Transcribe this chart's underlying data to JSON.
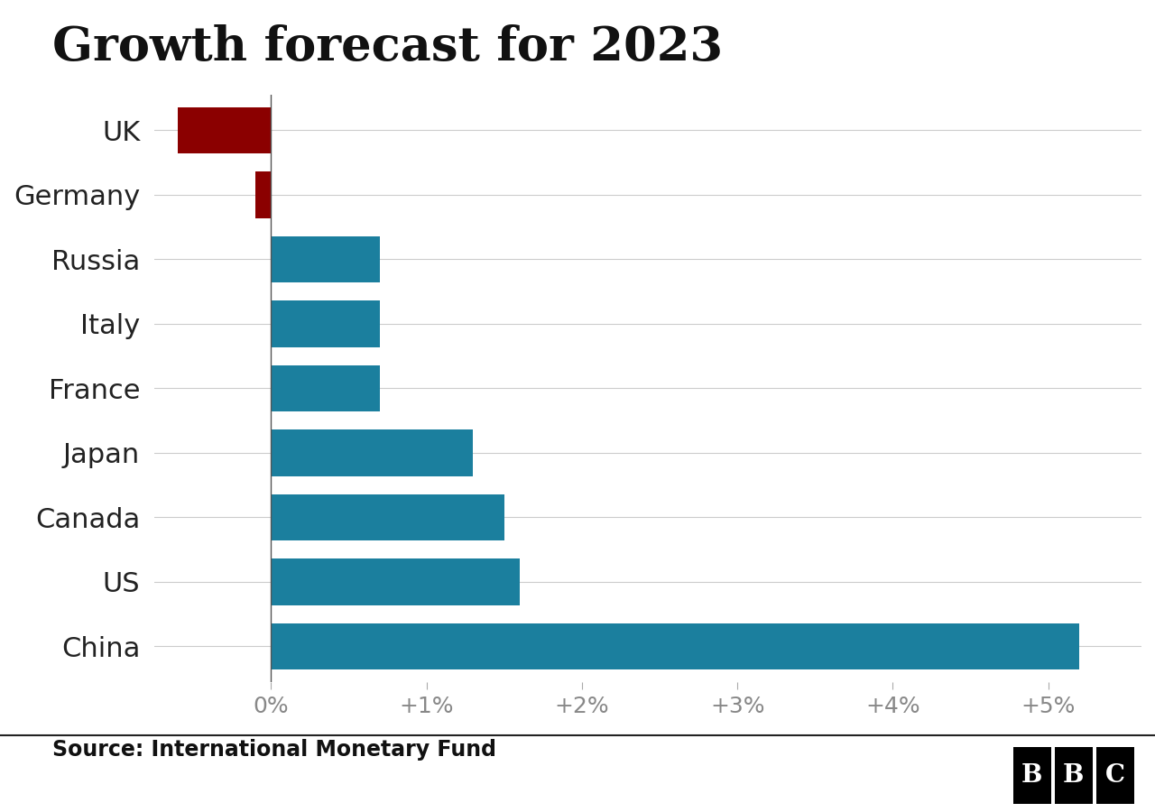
{
  "title": "Growth forecast for 2023",
  "source": "Source: International Monetary Fund",
  "categories": [
    "China",
    "US",
    "Canada",
    "Japan",
    "France",
    "Italy",
    "Russia",
    "Germany",
    "UK"
  ],
  "values": [
    5.2,
    1.6,
    1.5,
    1.3,
    0.7,
    0.7,
    0.7,
    -0.1,
    -0.6
  ],
  "bar_colors": [
    "#1b7f9e",
    "#1b7f9e",
    "#1b7f9e",
    "#1b7f9e",
    "#1b7f9e",
    "#1b7f9e",
    "#1b7f9e",
    "#8b0000",
    "#8b0000"
  ],
  "background_color": "#ffffff",
  "plot_bg_color": "#f0f0f0",
  "title_fontsize": 38,
  "label_fontsize": 22,
  "tick_fontsize": 18,
  "source_fontsize": 17,
  "xlim": [
    -0.75,
    5.6
  ],
  "xticks": [
    0,
    1,
    2,
    3,
    4,
    5
  ],
  "xtick_labels": [
    "0%",
    "+1%",
    "+2%",
    "+3%",
    "+4%",
    "+5%"
  ],
  "bar_height": 0.72,
  "grid_color": "#cccccc",
  "separator_color": "#222222",
  "bbc_box_color": "#000000",
  "bbc_text_color": "#ffffff",
  "tick_color": "#888888",
  "label_color": "#222222"
}
